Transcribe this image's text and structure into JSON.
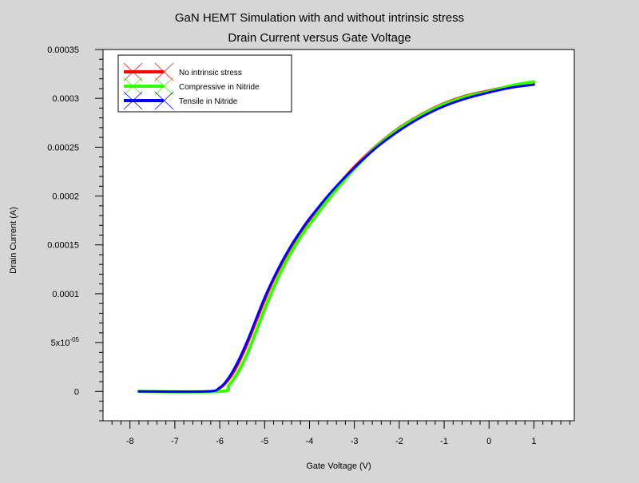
{
  "chart_data": {
    "type": "line",
    "title": "GaN HEMT Simulation with and without intrinsic stress",
    "subtitle": "Drain Current versus Gate Voltage",
    "xlabel": "Gate Voltage (V)",
    "ylabel": "Drain Current (A)",
    "xlim": [
      -8.6,
      1.9
    ],
    "ylim": [
      -3e-05,
      0.00035
    ],
    "xticks": [
      -8,
      -7,
      -6,
      -5,
      -4,
      -3,
      -2,
      -1,
      0,
      1
    ],
    "xtick_labels": [
      "-8",
      "-7",
      "-6",
      "-5",
      "-4",
      "-3",
      "-2",
      "-1",
      "0",
      "1"
    ],
    "yticks": [
      0,
      5e-05,
      0.0001,
      0.00015,
      0.0002,
      0.00025,
      0.0003,
      0.00035
    ],
    "ytick_labels": [
      "0",
      "5x10-05",
      "0.0001",
      "0.00015",
      "0.0002",
      "0.00025",
      "0.0003",
      "0.00035"
    ],
    "legend_position": "top-left",
    "grid": false,
    "series": [
      {
        "name": "No intrinsic stress",
        "color": "#ff0000",
        "x": [
          -7.8,
          -6.2,
          -6.0,
          -5.8,
          -5.6,
          -5.4,
          -5.2,
          -5.0,
          -4.8,
          -4.6,
          -4.4,
          -4.2,
          -4.0,
          -3.5,
          -3.0,
          -2.5,
          -2.0,
          -1.5,
          -1.0,
          -0.5,
          0.0,
          0.5,
          1.0
        ],
        "y": [
          0,
          0,
          3e-06,
          1.2e-05,
          2.7e-05,
          4.7e-05,
          7e-05,
          9.3e-05,
          0.000114,
          0.000132,
          0.000148,
          0.000162,
          0.000175,
          0.000204,
          0.00023,
          0.000252,
          0.00027,
          0.000284,
          0.000295,
          0.000303,
          0.000308,
          0.000313,
          0.000316
        ]
      },
      {
        "name": "Compressive in Nitride",
        "color": "#33ff00",
        "x": [
          -7.8,
          -6.0,
          -5.8,
          -5.6,
          -5.4,
          -5.2,
          -5.0,
          -4.8,
          -4.6,
          -4.4,
          -4.2,
          -4.0,
          -3.5,
          -3.0,
          -2.5,
          -2.0,
          -1.5,
          -1.0,
          -0.5,
          0.0,
          0.5,
          1.0
        ],
        "y": [
          0,
          0,
          6e-06,
          1.9e-05,
          3.7e-05,
          6e-05,
          8.4e-05,
          0.000106,
          0.000126,
          0.000143,
          0.000158,
          0.000171,
          0.000201,
          0.000228,
          0.000251,
          0.000269,
          0.000283,
          0.000294,
          0.000302,
          0.000307,
          0.000313,
          0.000317
        ]
      },
      {
        "name": "Tensile in Nitride",
        "color": "#0000ff",
        "x": [
          -7.8,
          -6.3,
          -6.0,
          -5.8,
          -5.6,
          -5.4,
          -5.2,
          -5.0,
          -4.8,
          -4.6,
          -4.4,
          -4.2,
          -4.0,
          -3.5,
          -3.0,
          -2.5,
          -2.0,
          -1.5,
          -1.0,
          -0.5,
          0.0,
          0.5,
          1.0
        ],
        "y": [
          0,
          0,
          4e-06,
          1.4e-05,
          3e-05,
          5e-05,
          7.3e-05,
          9.6e-05,
          0.000116,
          0.000134,
          0.00015,
          0.000164,
          0.000177,
          0.000205,
          0.000229,
          0.00025,
          0.000267,
          0.000281,
          0.000292,
          0.0003,
          0.000306,
          0.000311,
          0.000314
        ]
      }
    ]
  }
}
